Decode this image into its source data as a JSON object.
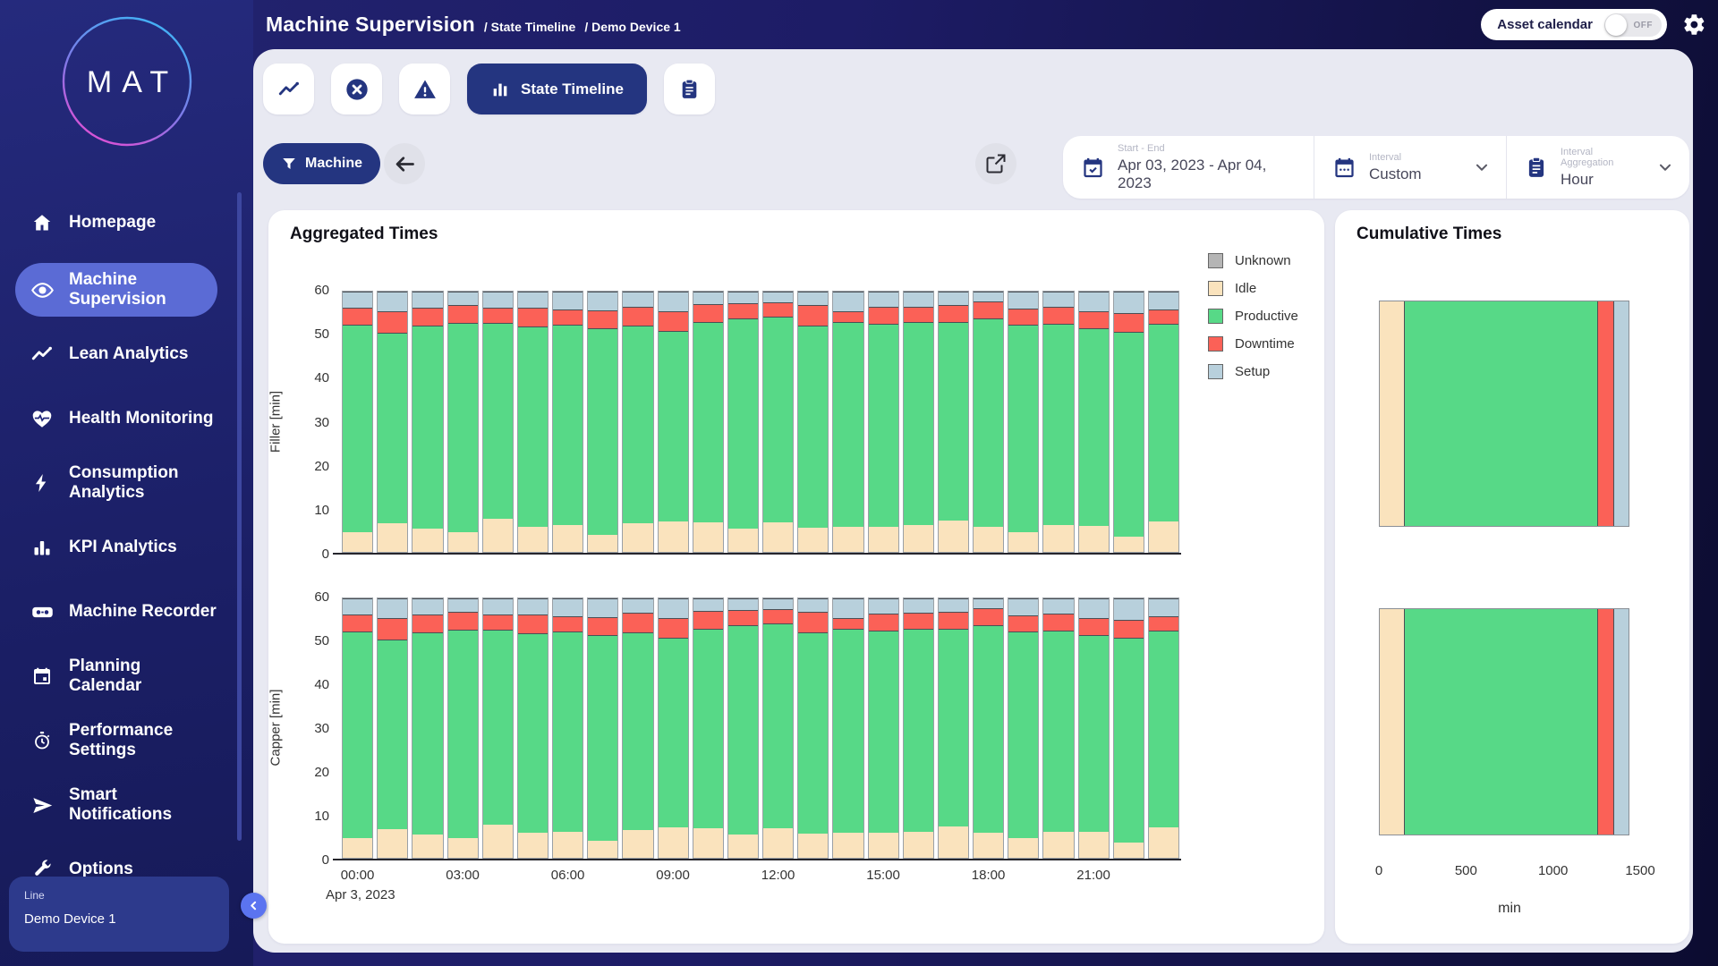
{
  "colors": {
    "accent_dark_blue": "#243580",
    "sidebar_active": "#5b6bd5",
    "unknown": "#b5b5b5",
    "idle": "#fae3bd",
    "productive": "#57d987",
    "downtime": "#fb6157",
    "setup": "#b8d0dc"
  },
  "header": {
    "title": "Machine Supervision",
    "crumb1": "/ State Timeline",
    "crumb2": "/ Demo Device 1",
    "asset_calendar_label": "Asset calendar",
    "asset_calendar_state": "OFF"
  },
  "sidebar": {
    "logo_text": "MAT",
    "items": [
      {
        "label": "Homepage",
        "icon": "home-icon",
        "active": false
      },
      {
        "label": "Machine Supervision",
        "icon": "eye-icon",
        "active": true
      },
      {
        "label": "Lean Analytics",
        "icon": "trend-icon",
        "active": false
      },
      {
        "label": "Health Monitoring",
        "icon": "heart-pulse-icon",
        "active": false
      },
      {
        "label": "Consumption Analytics",
        "icon": "bolt-icon",
        "active": false
      },
      {
        "label": "KPI Analytics",
        "icon": "bar-chart-icon",
        "active": false
      },
      {
        "label": "Machine Recorder",
        "icon": "recorder-icon",
        "active": false
      },
      {
        "label": "Planning Calendar",
        "icon": "calendar-icon",
        "active": false
      },
      {
        "label": "Performance Settings",
        "icon": "stopwatch-icon",
        "active": false
      },
      {
        "label": "Smart Notifications",
        "icon": "send-icon",
        "active": false
      },
      {
        "label": "Options",
        "icon": "wrench-icon",
        "active": false
      }
    ],
    "footer": {
      "label": "Line",
      "value": "Demo Device 1"
    }
  },
  "tabs": {
    "items": [
      {
        "icon": "trend-icon",
        "label": "",
        "active": false
      },
      {
        "icon": "x-circle-icon",
        "label": "",
        "active": false
      },
      {
        "icon": "warning-icon",
        "label": "",
        "active": false
      },
      {
        "icon": "state-bars-icon",
        "label": "State Timeline",
        "active": true
      },
      {
        "icon": "clipboard-icon",
        "label": "",
        "active": false
      }
    ]
  },
  "filter_bar": {
    "machine_button": "Machine",
    "start_end_label": "Start - End",
    "start_end_value": "Apr 03, 2023 - Apr 04, 2023",
    "interval_label": "Interval",
    "interval_value": "Custom",
    "aggregation_label": "Interval Aggregation",
    "aggregation_value": "Hour"
  },
  "aggregated_panel": {
    "title": "Aggregated Times"
  },
  "cumulative_panel": {
    "title": "Cumulative Times"
  },
  "legend": [
    {
      "label": "Unknown",
      "color": "#b5b5b5"
    },
    {
      "label": "Idle",
      "color": "#fae3bd"
    },
    {
      "label": "Productive",
      "color": "#57d987"
    },
    {
      "label": "Downtime",
      "color": "#fb6157"
    },
    {
      "label": "Setup",
      "color": "#b8d0dc"
    }
  ],
  "chart_data": [
    {
      "type": "bar",
      "stacked": true,
      "title": "Aggregated Times - Filler",
      "ylabel": "Filler [min]",
      "ylim": [
        0,
        60
      ],
      "yticks": [
        0,
        10,
        20,
        30,
        40,
        50,
        60
      ],
      "categories": [
        "00:00",
        "01:00",
        "02:00",
        "03:00",
        "04:00",
        "05:00",
        "06:00",
        "07:00",
        "08:00",
        "09:00",
        "10:00",
        "11:00",
        "12:00",
        "13:00",
        "14:00",
        "15:00",
        "16:00",
        "17:00",
        "18:00",
        "19:00",
        "20:00",
        "21:00",
        "22:00",
        "23:00"
      ],
      "xtick_indices": [
        0,
        3,
        6,
        9,
        12,
        15,
        18,
        21
      ],
      "series": [
        {
          "name": "Idle",
          "color": "#fae3bd",
          "values": [
            4.5,
            6.6,
            5.3,
            4.5,
            7.6,
            5.7,
            6.1,
            3.9,
            6.5,
            7.0,
            6.8,
            5.3,
            6.8,
            5.5,
            5.7,
            5.8,
            6.1,
            7.2,
            5.8,
            4.6,
            6.1,
            5.9,
            3.6,
            7.0
          ]
        },
        {
          "name": "Productive",
          "color": "#57d987",
          "values": [
            47.8,
            43.9,
            46.8,
            48.3,
            45.1,
            46.3,
            46.3,
            47.7,
            45.7,
            44.0,
            46.2,
            48.5,
            47.4,
            46.7,
            47.2,
            46.8,
            46.8,
            45.8,
            48.0,
            47.7,
            46.5,
            45.7,
            47.2,
            45.6
          ]
        },
        {
          "name": "Downtime",
          "color": "#fb6157",
          "values": [
            3.9,
            4.9,
            4.2,
            4.1,
            3.6,
            4.2,
            3.4,
            4.1,
            4.4,
            4.5,
            4.1,
            3.5,
            3.4,
            4.8,
            2.5,
            3.8,
            3.7,
            3.9,
            3.9,
            3.8,
            3.8,
            3.9,
            4.3,
            3.2
          ]
        },
        {
          "name": "Setup",
          "color": "#b8d0dc",
          "values": [
            3.8,
            4.6,
            3.7,
            3.1,
            3.7,
            3.8,
            4.2,
            4.3,
            3.4,
            4.5,
            2.9,
            2.7,
            2.4,
            3.0,
            4.6,
            3.6,
            3.4,
            3.1,
            2.3,
            3.9,
            3.6,
            4.5,
            4.9,
            4.2
          ]
        }
      ]
    },
    {
      "type": "bar",
      "stacked": true,
      "title": "Aggregated Times - Capper",
      "ylabel": "Capper [min]",
      "ylim": [
        0,
        60
      ],
      "yticks": [
        0,
        10,
        20,
        30,
        40,
        50,
        60
      ],
      "categories": [
        "00:00",
        "01:00",
        "02:00",
        "03:00",
        "04:00",
        "05:00",
        "06:00",
        "07:00",
        "08:00",
        "09:00",
        "10:00",
        "11:00",
        "12:00",
        "13:00",
        "14:00",
        "15:00",
        "16:00",
        "17:00",
        "18:00",
        "19:00",
        "20:00",
        "21:00",
        "22:00",
        "23:00"
      ],
      "xtick_indices": [
        0,
        3,
        6,
        9,
        12,
        15,
        18,
        21
      ],
      "date_label": "Apr 3, 2023",
      "series": [
        {
          "name": "Idle",
          "color": "#fae3bd",
          "values": [
            4.5,
            6.6,
            5.3,
            4.5,
            7.6,
            5.7,
            6.1,
            3.9,
            6.5,
            7.0,
            6.8,
            5.3,
            6.8,
            5.5,
            5.7,
            5.8,
            6.1,
            7.2,
            5.8,
            4.6,
            6.1,
            5.9,
            3.6,
            7.0
          ]
        },
        {
          "name": "Productive",
          "color": "#57d987",
          "values": [
            47.8,
            43.9,
            46.8,
            48.3,
            45.1,
            46.3,
            46.3,
            47.7,
            45.7,
            44.0,
            46.2,
            48.5,
            47.4,
            46.7,
            47.2,
            46.8,
            46.8,
            45.8,
            48.0,
            47.7,
            46.5,
            45.7,
            47.2,
            45.6
          ]
        },
        {
          "name": "Downtime",
          "color": "#fb6157",
          "values": [
            3.9,
            4.9,
            4.2,
            4.1,
            3.6,
            4.2,
            3.4,
            4.1,
            4.4,
            4.5,
            4.1,
            3.5,
            3.4,
            4.8,
            2.5,
            3.8,
            3.7,
            3.9,
            3.9,
            3.8,
            3.8,
            3.9,
            4.3,
            3.2
          ]
        },
        {
          "name": "Setup",
          "color": "#b8d0dc",
          "values": [
            3.8,
            4.6,
            3.7,
            3.1,
            3.7,
            3.8,
            4.2,
            4.3,
            3.4,
            4.5,
            2.9,
            2.7,
            2.4,
            3.0,
            4.6,
            3.6,
            3.4,
            3.1,
            2.3,
            3.9,
            3.6,
            4.5,
            4.9,
            4.2
          ]
        }
      ]
    },
    {
      "type": "bar",
      "orientation": "horizontal",
      "stacked": true,
      "title": "Cumulative Times",
      "categories": [
        "Filler",
        "Capper"
      ],
      "xlabel": "min",
      "xlim": [
        0,
        1500
      ],
      "xticks": [
        0,
        500,
        1000,
        1500
      ],
      "series": [
        {
          "name": "Idle",
          "color": "#fae3bd",
          "values": [
            140,
            140
          ]
        },
        {
          "name": "Productive",
          "color": "#57d987",
          "values": [
            1118,
            1118
          ]
        },
        {
          "name": "Downtime",
          "color": "#fb6157",
          "values": [
            94,
            94
          ]
        },
        {
          "name": "Setup",
          "color": "#b8d0dc",
          "values": [
            88,
            88
          ]
        }
      ]
    }
  ]
}
